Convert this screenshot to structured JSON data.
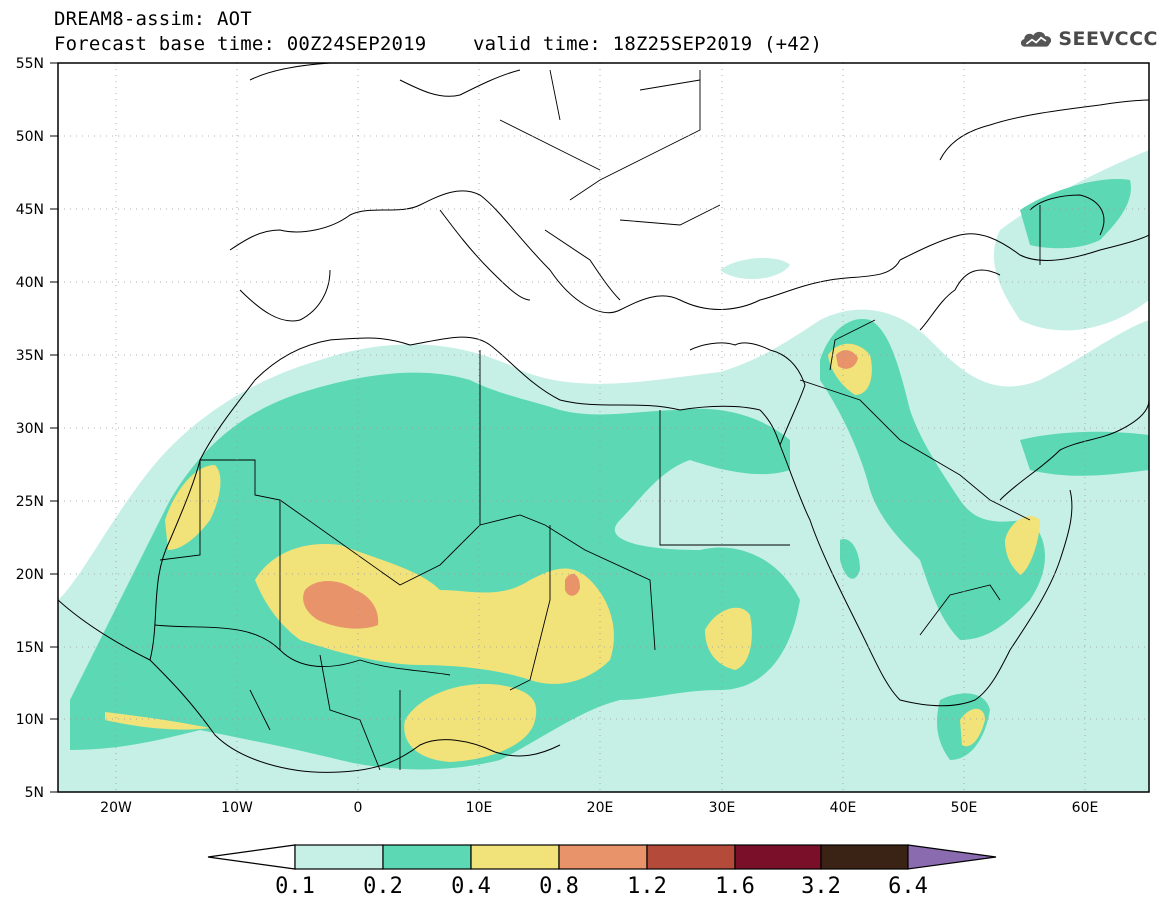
{
  "header": {
    "title": "DREAM8-assim: AOT",
    "base_time": "Forecast base time: 00Z24SEP2019",
    "valid_time": "valid time: 18Z25SEP2019 (+42)"
  },
  "logo": {
    "text": "SEEVCCC",
    "icon": "cloud-icon"
  },
  "map": {
    "lon_range": [
      -25,
      65
    ],
    "lat_range": [
      5,
      55
    ],
    "lat_ticks": [
      "55N",
      "50N",
      "45N",
      "40N",
      "35N",
      "30N",
      "25N",
      "20N",
      "15N",
      "10N",
      "5N"
    ],
    "lon_ticks": [
      "20W",
      "10W",
      "0",
      "10E",
      "20E",
      "30E",
      "40E",
      "50E",
      "60E"
    ]
  },
  "colorbar": {
    "labels": [
      "0.1",
      "0.2",
      "0.4",
      "0.8",
      "1.2",
      "1.6",
      "3.2",
      "6.4"
    ],
    "colors": [
      "#ffffff",
      "#c6f0e6",
      "#5cd9b4",
      "#f2e27a",
      "#e8936a",
      "#b34a3a",
      "#7a0f2a",
      "#3a2314",
      "#8a6bb0"
    ]
  },
  "legend_levels": [
    "0.1-0.2",
    "0.2-0.4",
    "0.4-0.8",
    "0.8-1.2",
    "1.2-1.6"
  ]
}
